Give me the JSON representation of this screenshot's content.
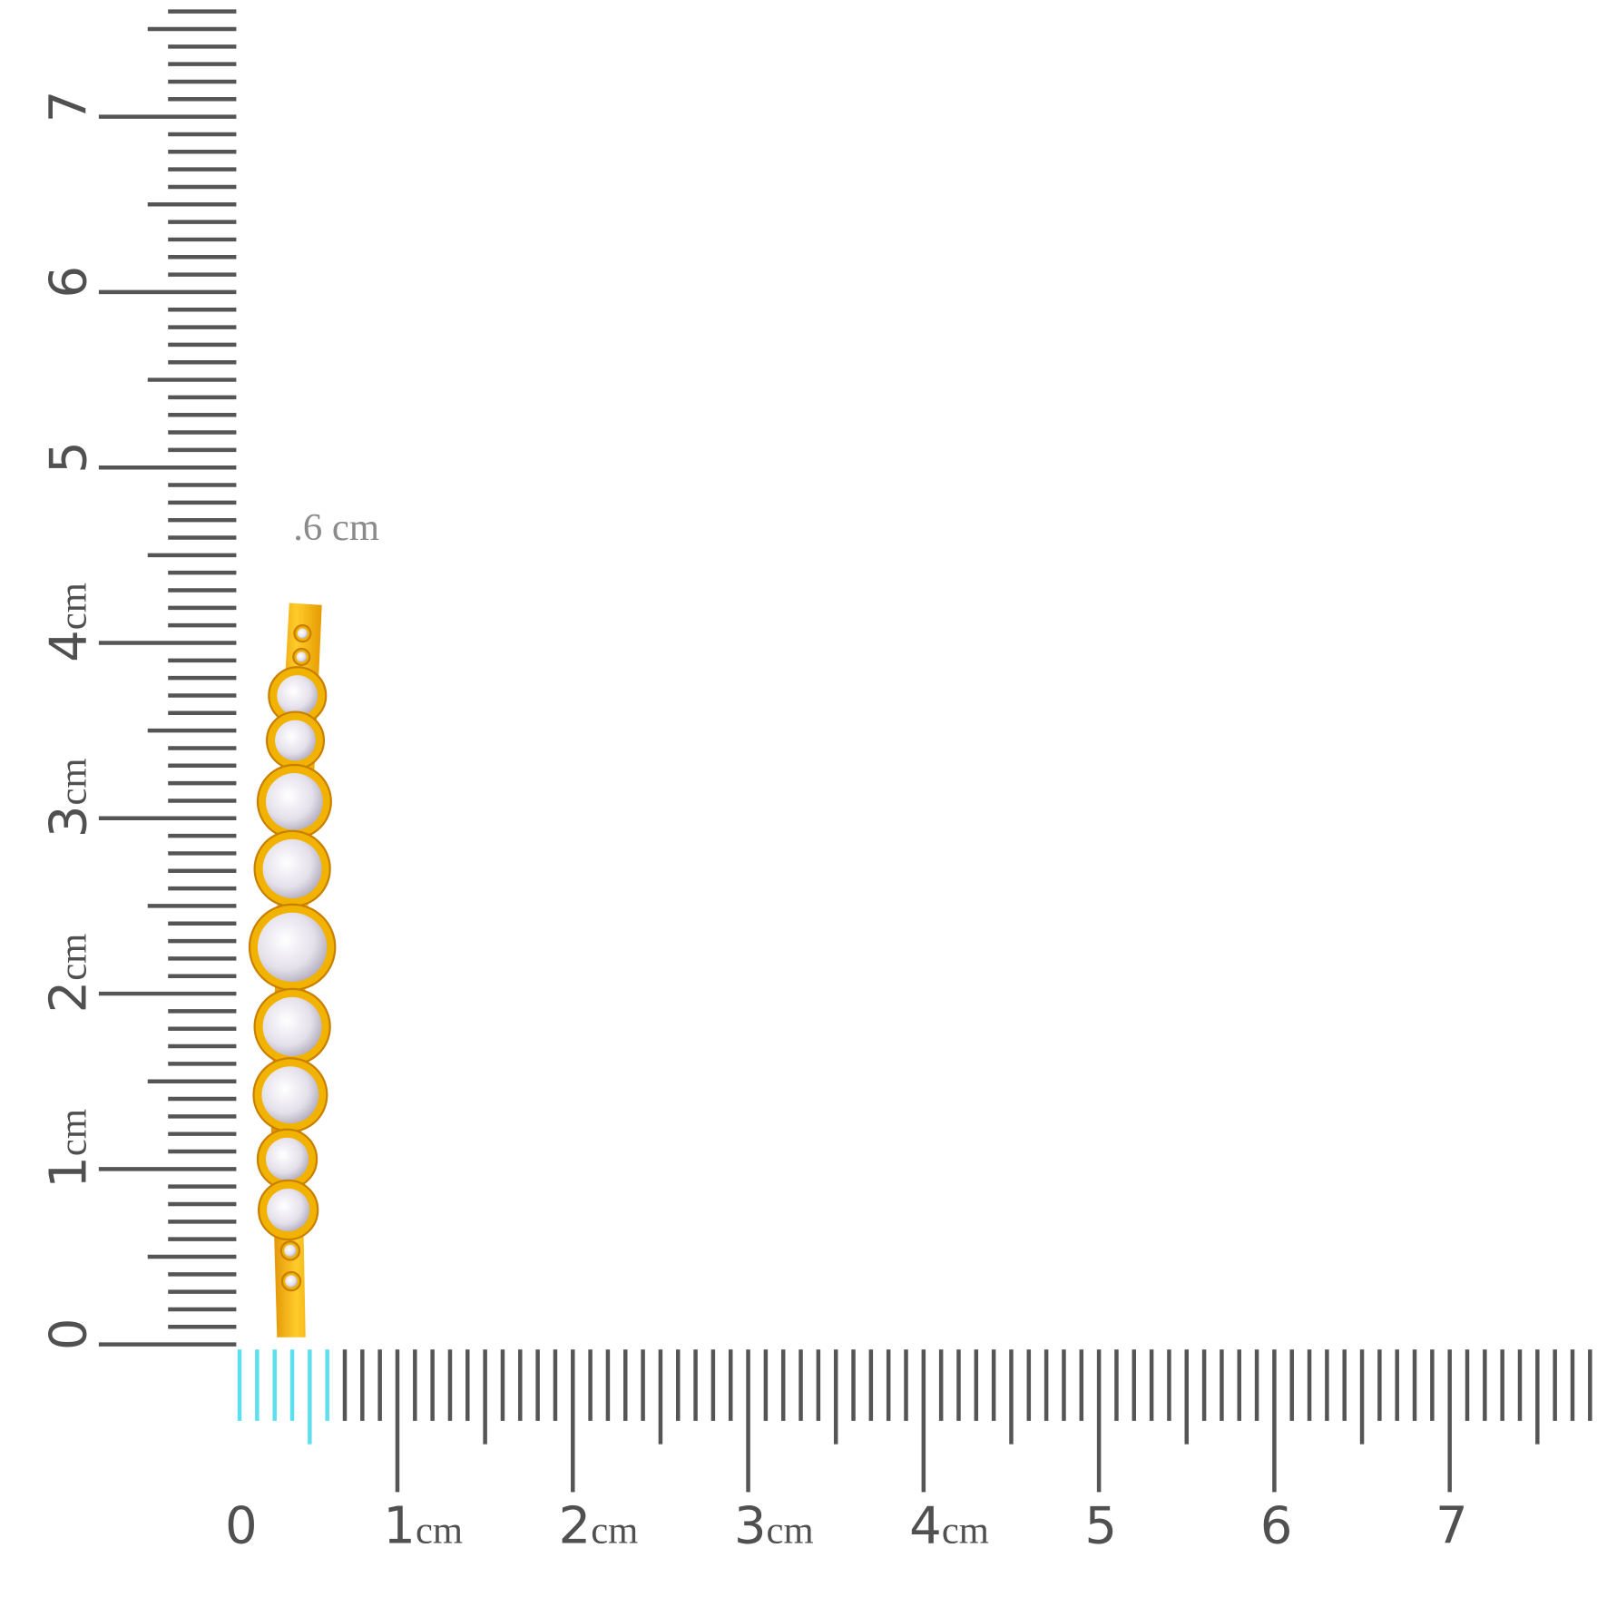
{
  "vertical_ruler": {
    "labels": [
      {
        "number": "0"
      },
      {
        "number": "1",
        "unit": "cm"
      },
      {
        "number": "2",
        "unit": "cm"
      },
      {
        "number": "3",
        "unit": "cm"
      },
      {
        "number": "4",
        "unit": "cm"
      },
      {
        "number": "5"
      },
      {
        "number": "6"
      },
      {
        "number": "7"
      }
    ]
  },
  "horizontal_ruler": {
    "labels": [
      {
        "number": "0"
      },
      {
        "number": "1",
        "unit": "cm"
      },
      {
        "number": "2",
        "unit": "cm"
      },
      {
        "number": "3",
        "unit": "cm"
      },
      {
        "number": "4",
        "unit": "cm"
      },
      {
        "number": "5"
      },
      {
        "number": "6"
      },
      {
        "number": "7"
      }
    ]
  },
  "annotation": ".6 cm"
}
